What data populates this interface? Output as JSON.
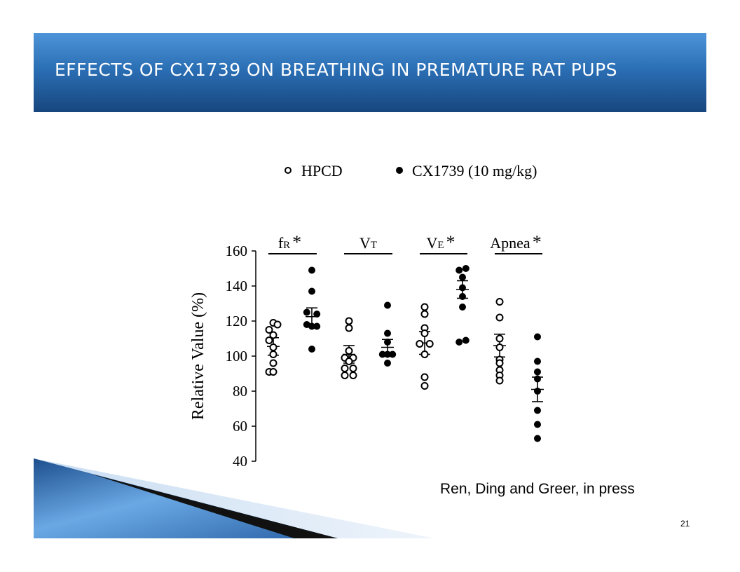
{
  "slide": {
    "title": "EFFECTS OF CX1739 ON BREATHING IN PREMATURE RAT PUPS",
    "citation": "Ren, Ding and Greer, in press",
    "page_number": "21",
    "colors": {
      "title_bar_top": "#4e94d8",
      "title_bar_bottom": "#17467e",
      "title_text": "#ffffff"
    }
  },
  "chart_data": {
    "type": "scatter",
    "ylabel": "Relative Value (%)",
    "ylim": [
      40,
      160
    ],
    "yticks": [
      40,
      60,
      80,
      100,
      120,
      140,
      160
    ],
    "legend": [
      {
        "name": "HPCD",
        "marker": "open-circle"
      },
      {
        "name": "CX1739 (10 mg/kg)",
        "marker": "filled-circle"
      }
    ],
    "legend_placement": "top",
    "groups": [
      {
        "main": "f",
        "sub": "R",
        "star": "*"
      },
      {
        "main": "V",
        "sub": "T",
        "star": ""
      },
      {
        "main": "V",
        "sub": "E",
        "star": "*"
      },
      {
        "main": "Apnea",
        "sub": "",
        "star": "*"
      }
    ],
    "series": [
      {
        "name": "HPCD",
        "group": 0,
        "mean": 105.5,
        "sem": 5,
        "points": [
          [
            0,
            119
          ],
          [
            -0.75,
            115
          ],
          [
            0.75,
            118
          ],
          [
            0,
            112
          ],
          [
            -0.75,
            109
          ],
          [
            0,
            105
          ],
          [
            0,
            101
          ],
          [
            0,
            96
          ],
          [
            -0.75,
            91
          ],
          [
            0,
            91
          ]
        ]
      },
      {
        "name": "CX1739 (10 mg/kg)",
        "group": 0,
        "mean": 122.5,
        "sem": 5,
        "points": [
          [
            0,
            149
          ],
          [
            0,
            137
          ],
          [
            -0.9,
            125
          ],
          [
            0.9,
            124
          ],
          [
            -0.9,
            118
          ],
          [
            0.9,
            117
          ],
          [
            0,
            117
          ],
          [
            0,
            104
          ]
        ]
      },
      {
        "name": "HPCD",
        "group": 1,
        "mean": 101,
        "sem": 5,
        "points": [
          [
            0,
            120
          ],
          [
            0,
            116
          ],
          [
            0,
            103
          ],
          [
            -0.75,
            99
          ],
          [
            0.75,
            99
          ],
          [
            0,
            97
          ],
          [
            -0.75,
            93
          ],
          [
            0.75,
            93
          ],
          [
            -0.75,
            89
          ],
          [
            0.75,
            89
          ]
        ]
      },
      {
        "name": "CX1739 (10 mg/kg)",
        "group": 1,
        "mean": 105,
        "sem": 4.5,
        "points": [
          [
            0,
            129
          ],
          [
            0,
            113
          ],
          [
            0,
            108
          ],
          [
            -0.9,
            101
          ],
          [
            0,
            101
          ],
          [
            0.9,
            101
          ],
          [
            0,
            96
          ]
        ]
      },
      {
        "name": "HPCD",
        "group": 2,
        "mean": 107.5,
        "sem": 6.5,
        "points": [
          [
            0,
            128
          ],
          [
            0,
            124
          ],
          [
            0,
            116
          ],
          [
            0,
            113
          ],
          [
            -0.9,
            107
          ],
          [
            0.9,
            107
          ],
          [
            0,
            101
          ],
          [
            0,
            88
          ],
          [
            0,
            83
          ]
        ]
      },
      {
        "name": "CX1739 (10 mg/kg)",
        "group": 2,
        "mean": 138,
        "sem": 5,
        "points": [
          [
            -0.6,
            149
          ],
          [
            0.6,
            150
          ],
          [
            0,
            145
          ],
          [
            0,
            139
          ],
          [
            0,
            134
          ],
          [
            0,
            128
          ],
          [
            -0.6,
            108
          ],
          [
            0.6,
            109
          ]
        ]
      },
      {
        "name": "HPCD",
        "group": 3,
        "mean": 106,
        "sem": 6.5,
        "points": [
          [
            0,
            131
          ],
          [
            0,
            122
          ],
          [
            0,
            110
          ],
          [
            0,
            105
          ],
          [
            0,
            98
          ],
          [
            0,
            96
          ],
          [
            0,
            92
          ],
          [
            0,
            89
          ],
          [
            0,
            86
          ]
        ]
      },
      {
        "name": "CX1739 (10 mg/kg)",
        "group": 3,
        "mean": 81,
        "sem": 7,
        "points": [
          [
            0,
            111
          ],
          [
            0,
            97
          ],
          [
            0,
            91
          ],
          [
            0,
            87
          ],
          [
            0,
            80
          ],
          [
            0,
            69
          ],
          [
            0,
            61
          ],
          [
            0,
            53
          ]
        ]
      }
    ]
  }
}
